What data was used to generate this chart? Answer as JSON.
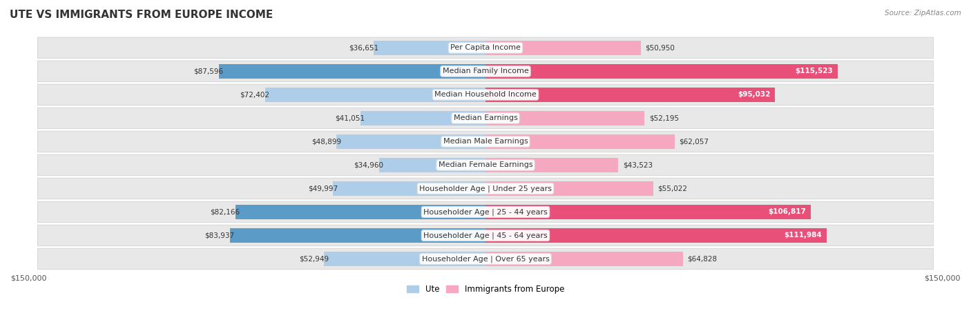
{
  "title": "UTE VS IMMIGRANTS FROM EUROPE INCOME",
  "source": "Source: ZipAtlas.com",
  "categories": [
    "Per Capita Income",
    "Median Family Income",
    "Median Household Income",
    "Median Earnings",
    "Median Male Earnings",
    "Median Female Earnings",
    "Householder Age | Under 25 years",
    "Householder Age | 25 - 44 years",
    "Householder Age | 45 - 64 years",
    "Householder Age | Over 65 years"
  ],
  "ute_values": [
    36651,
    87596,
    72402,
    41051,
    48899,
    34960,
    49997,
    82166,
    83937,
    52949
  ],
  "euro_values": [
    50950,
    115523,
    95032,
    52195,
    62057,
    43523,
    55022,
    106817,
    111984,
    64828
  ],
  "ute_color_light": "#aecde8",
  "ute_color_dark": "#5b9bc8",
  "euro_color_light": "#f5a8c0",
  "euro_color_dark": "#e8507a",
  "max_value": 150000,
  "bg_color": "#ffffff",
  "row_bg": "#e8e8e8",
  "legend_ute": "Ute",
  "legend_euro": "Immigrants from Europe",
  "title_fontsize": 11,
  "label_fontsize": 8,
  "value_fontsize": 7.5,
  "large_threshold": 75000
}
